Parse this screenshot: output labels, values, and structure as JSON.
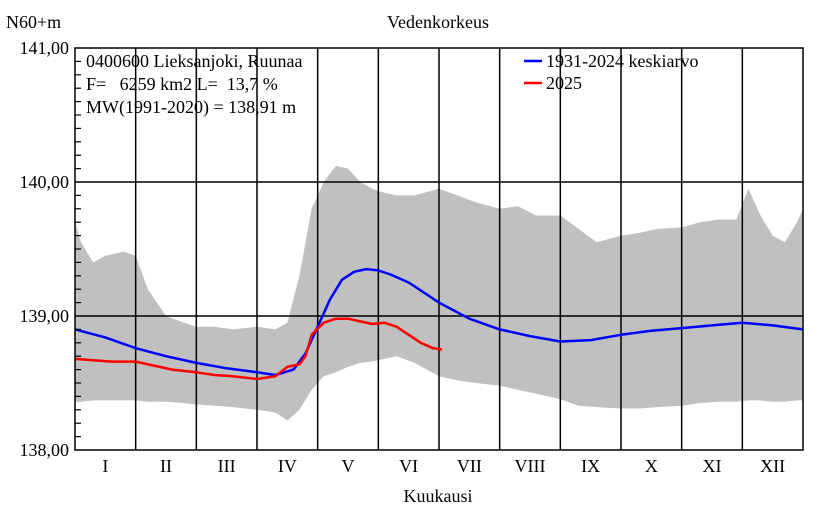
{
  "chart_data": {
    "type": "line",
    "title": "Vedenkorkeus",
    "ylabel": "N60+m",
    "xlabel": "Kuukausi",
    "ylim": [
      138.0,
      141.0
    ],
    "xlim": [
      0,
      12
    ],
    "y_ticks": [
      "138,00",
      "139,00",
      "140,00",
      "141,00"
    ],
    "y_tick_values": [
      138.0,
      139.0,
      140.0,
      141.0
    ],
    "categories": [
      "I",
      "II",
      "III",
      "IV",
      "V",
      "VI",
      "VII",
      "VIII",
      "IX",
      "X",
      "XI",
      "XII"
    ],
    "info": [
      "0400600 Lieksanjoki, Ruunaa",
      "F=   6259 km2 L=  13,7 %",
      "MW(1991-2020) = 138,91 m"
    ],
    "legend_position": "top-right",
    "grid": true,
    "colors": {
      "average": "#0000ff",
      "current": "#ff0000",
      "band": "#c0c0c0"
    },
    "series": [
      {
        "name": "1931-2024 keskiarvo",
        "x": [
          0,
          0.5,
          1,
          1.5,
          2,
          2.5,
          3,
          3.3,
          3.6,
          3.8,
          4.0,
          4.2,
          4.4,
          4.6,
          4.8,
          5.0,
          5.2,
          5.5,
          6.0,
          6.5,
          7.0,
          7.5,
          8.0,
          8.5,
          9.0,
          9.5,
          10.0,
          10.5,
          11.0,
          11.5,
          12.0
        ],
        "values": [
          138.9,
          138.84,
          138.76,
          138.7,
          138.65,
          138.61,
          138.58,
          138.56,
          138.6,
          138.72,
          138.92,
          139.12,
          139.27,
          139.33,
          139.35,
          139.34,
          139.31,
          139.25,
          139.1,
          138.98,
          138.9,
          138.85,
          138.81,
          138.82,
          138.86,
          138.89,
          138.91,
          138.93,
          138.95,
          138.93,
          138.9
        ]
      },
      {
        "name": "2025",
        "x": [
          0,
          0.3,
          0.6,
          1.0,
          1.3,
          1.6,
          2.0,
          2.3,
          2.6,
          3.0,
          3.3,
          3.5,
          3.7,
          3.8,
          3.9,
          4.1,
          4.3,
          4.5,
          4.7,
          4.9,
          5.1,
          5.3,
          5.5,
          5.7,
          5.9,
          6.05
        ],
        "values": [
          138.68,
          138.67,
          138.66,
          138.66,
          138.63,
          138.6,
          138.58,
          138.56,
          138.55,
          138.53,
          138.55,
          138.62,
          138.64,
          138.7,
          138.86,
          138.95,
          138.98,
          138.98,
          138.96,
          138.94,
          138.95,
          138.92,
          138.86,
          138.8,
          138.76,
          138.75
        ]
      }
    ],
    "range_band": {
      "x": [
        0,
        0.1,
        0.3,
        0.5,
        0.8,
        1.0,
        1.2,
        1.5,
        1.8,
        2.0,
        2.3,
        2.6,
        3.0,
        3.3,
        3.5,
        3.7,
        3.9,
        4.1,
        4.3,
        4.5,
        4.7,
        4.9,
        5.1,
        5.3,
        5.6,
        6.0,
        6.3,
        6.6,
        7.0,
        7.3,
        7.6,
        8.0,
        8.3,
        8.6,
        9.0,
        9.3,
        9.6,
        10.0,
        10.3,
        10.6,
        10.9,
        11.1,
        11.3,
        11.5,
        11.7,
        11.9,
        12.0
      ],
      "max": [
        139.7,
        139.55,
        139.4,
        139.45,
        139.48,
        139.45,
        139.2,
        139.0,
        138.95,
        138.92,
        138.92,
        138.9,
        138.92,
        138.9,
        138.95,
        139.3,
        139.8,
        140.0,
        140.12,
        140.1,
        140.0,
        139.95,
        139.92,
        139.9,
        139.9,
        139.95,
        139.9,
        139.85,
        139.8,
        139.82,
        139.75,
        139.75,
        139.65,
        139.55,
        139.6,
        139.62,
        139.65,
        139.66,
        139.7,
        139.72,
        139.72,
        139.95,
        139.75,
        139.6,
        139.55,
        139.7,
        139.8
      ],
      "min": [
        138.36,
        138.36,
        138.37,
        138.37,
        138.37,
        138.37,
        138.36,
        138.36,
        138.35,
        138.34,
        138.33,
        138.32,
        138.3,
        138.28,
        138.22,
        138.3,
        138.45,
        138.55,
        138.58,
        138.62,
        138.65,
        138.66,
        138.68,
        138.7,
        138.65,
        138.55,
        138.52,
        138.5,
        138.48,
        138.45,
        138.42,
        138.38,
        138.33,
        138.32,
        138.31,
        138.31,
        138.32,
        138.33,
        138.35,
        138.36,
        138.36,
        138.37,
        138.37,
        138.36,
        138.36,
        138.37,
        138.37
      ]
    }
  }
}
